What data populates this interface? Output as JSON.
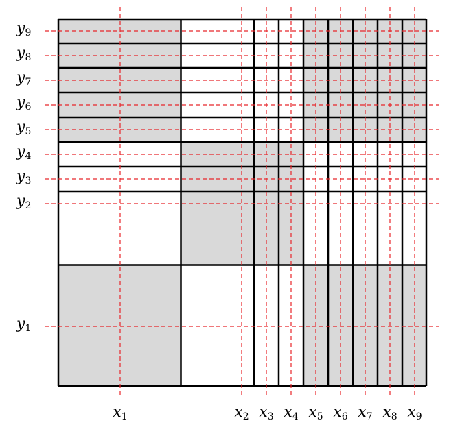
{
  "x_labels": [
    {
      "symbol": "x",
      "subscript": "1"
    },
    {
      "symbol": "x",
      "subscript": "2"
    },
    {
      "symbol": "x",
      "subscript": "3"
    },
    {
      "symbol": "x",
      "subscript": "4"
    },
    {
      "symbol": "x",
      "subscript": "5"
    },
    {
      "symbol": "x",
      "subscript": "6"
    },
    {
      "symbol": "x",
      "subscript": "7"
    },
    {
      "symbol": "x",
      "subscript": "8"
    },
    {
      "symbol": "x",
      "subscript": "9"
    }
  ],
  "y_labels": [
    {
      "symbol": "y",
      "subscript": "1"
    },
    {
      "symbol": "y",
      "subscript": "2"
    },
    {
      "symbol": "y",
      "subscript": "3"
    },
    {
      "symbol": "y",
      "subscript": "4"
    },
    {
      "symbol": "y",
      "subscript": "5"
    },
    {
      "symbol": "y",
      "subscript": "6"
    },
    {
      "symbol": "y",
      "subscript": "7"
    },
    {
      "symbol": "y",
      "subscript": "8"
    },
    {
      "symbol": "y",
      "subscript": "9"
    }
  ]
}
